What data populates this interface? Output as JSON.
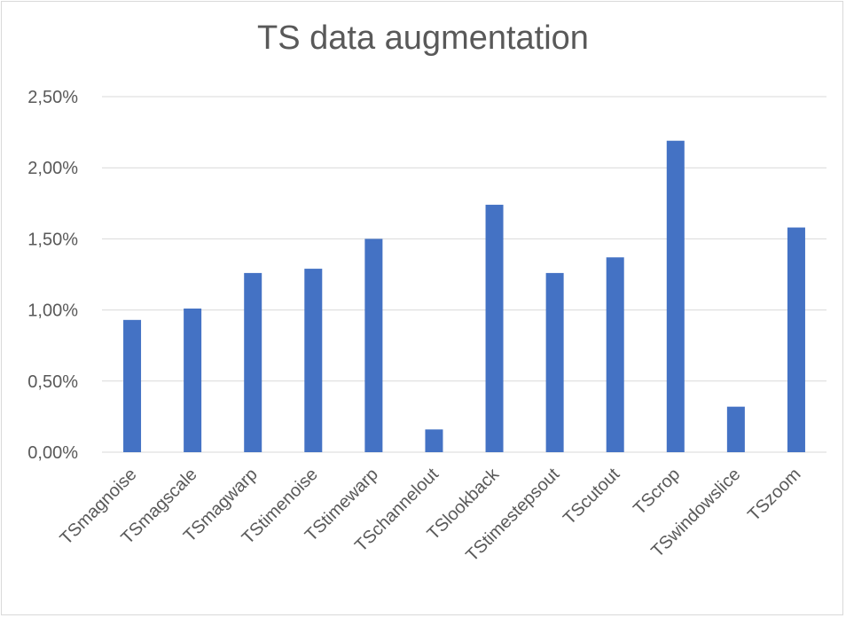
{
  "chart_data": {
    "type": "bar",
    "title": "TS data augmentation",
    "xlabel": "",
    "ylabel": "",
    "categories": [
      "TSmagnoise",
      "TSmagscale",
      "TSmagwarp",
      "TStimenoise",
      "TStimewarp",
      "TSchannelout",
      "TSlookback",
      "TStimestepsout",
      "TScutout",
      "TScrop",
      "TSwindowslice",
      "TSzoom"
    ],
    "values": [
      0.93,
      1.01,
      1.26,
      1.29,
      1.5,
      0.16,
      1.74,
      1.26,
      1.37,
      2.19,
      0.32,
      1.58
    ],
    "ylim": [
      0,
      2.5
    ],
    "yticks": [
      "0,00%",
      "0,50%",
      "1,00%",
      "1,50%",
      "2,00%",
      "2,50%"
    ],
    "grid": true,
    "legend": "none",
    "bar_color": "#4472c4",
    "grid_color": "#d9d9d9"
  }
}
